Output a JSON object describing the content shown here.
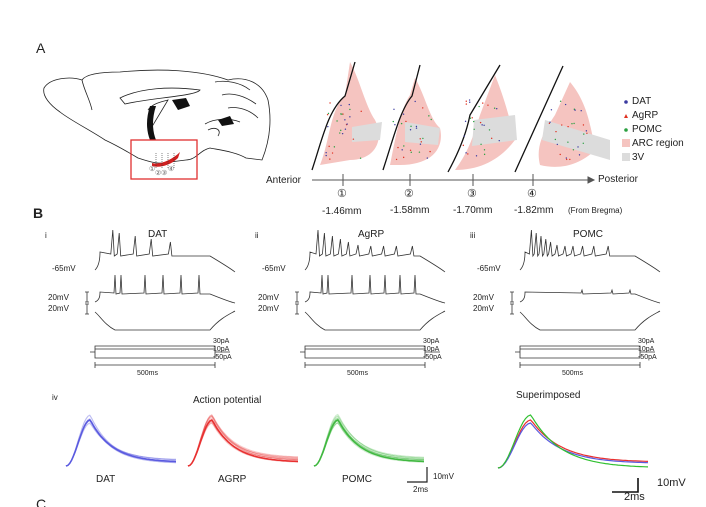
{
  "panels": {
    "a": "A",
    "b": "B",
    "c": "C"
  },
  "panel_a": {
    "axis": {
      "left": "Anterior",
      "right": "Posterior",
      "reference": "(From Bregma)"
    },
    "sections": [
      {
        "marker": "①",
        "position": "-1.46mm"
      },
      {
        "marker": "②",
        "position": "-1.58mm"
      },
      {
        "marker": "③",
        "position": "-1.70mm"
      },
      {
        "marker": "④",
        "position": "-1.82mm"
      }
    ],
    "legend": [
      {
        "label": "DAT",
        "color": "#3a3aa0",
        "symbol": "dot"
      },
      {
        "label": "AgRP",
        "color": "#e03020",
        "symbol": "triangle"
      },
      {
        "label": "POMC",
        "color": "#2aa040",
        "symbol": "dot"
      },
      {
        "label": "ARC region",
        "color": "#f5c4c0",
        "symbol": "square"
      },
      {
        "label": "3V",
        "color": "#dcdcdc",
        "symbol": "square"
      }
    ],
    "brain_inset_markers": [
      "①",
      "②",
      "③",
      "④"
    ]
  },
  "panel_b": {
    "subpanels": [
      {
        "index": "i",
        "title": "DAT"
      },
      {
        "index": "ii",
        "title": "AgRP"
      },
      {
        "index": "iii",
        "title": "POMC"
      }
    ],
    "resting": "-65mV",
    "scale_v": "20mV",
    "stimulus": [
      "30pA",
      "10pA",
      "-50pA"
    ],
    "duration": "500ms",
    "iv": {
      "index": "iv",
      "title": "Action potential",
      "cells": [
        {
          "label": "DAT",
          "color": "#5a5ae0"
        },
        {
          "label": "AGRP",
          "color": "#e83030"
        },
        {
          "label": "POMC",
          "color": "#40b840"
        }
      ],
      "scale_v": "10mV",
      "scale_t": "2ms",
      "superimposed": {
        "title": "Superimposed",
        "scale_v": "10mV",
        "scale_t": "2ms"
      }
    }
  }
}
